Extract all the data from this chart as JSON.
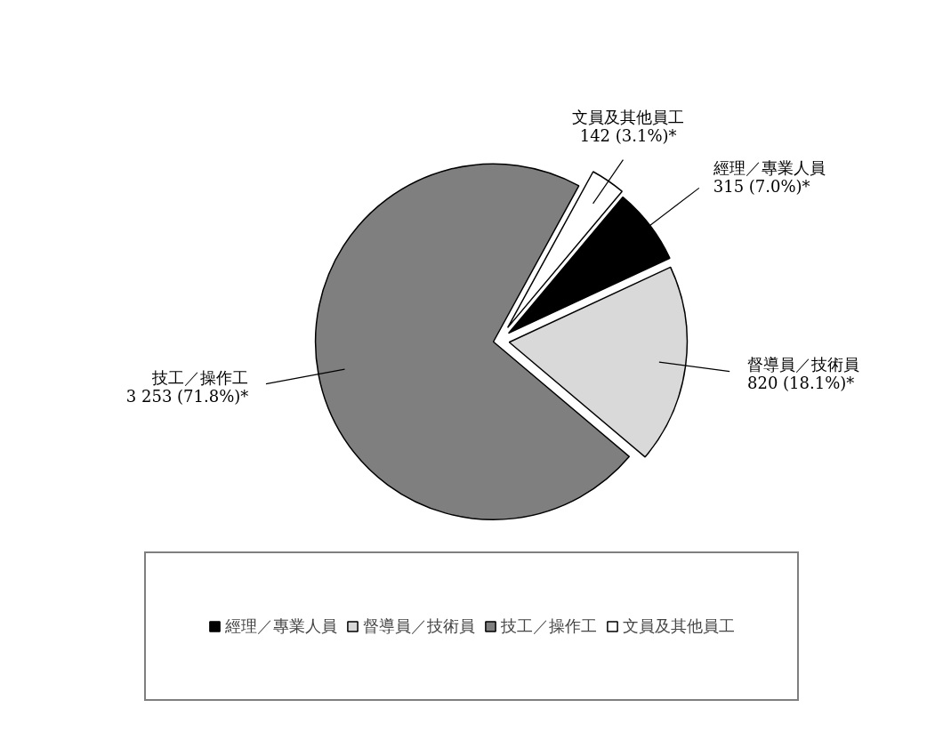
{
  "chart_data": {
    "type": "pie",
    "categories": [
      "經理／專業人員",
      "督導員／技術員",
      "技工／操作工",
      "文員及其他員工"
    ],
    "values": [
      315,
      820,
      3253,
      142
    ],
    "value_labels": [
      "315 (7.0%)*",
      "820 (18.1%)*",
      "3 253 (71.8%)*",
      "142 (3.1%)*"
    ],
    "colors": [
      "#000000",
      "#d9d9d9",
      "#7f7f7f",
      "#ffffff"
    ],
    "legend": "bottom"
  }
}
